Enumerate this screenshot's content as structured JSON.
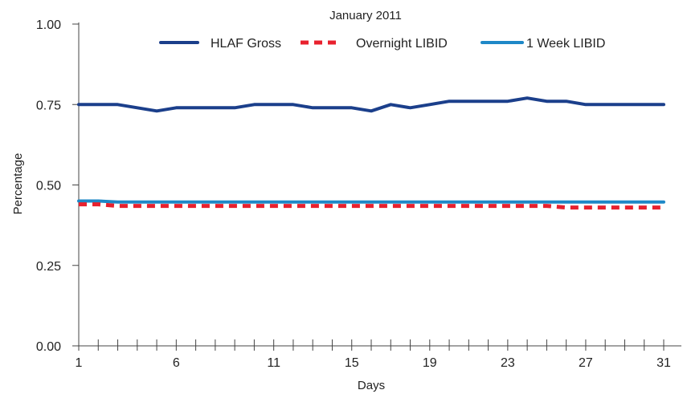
{
  "chart_data": {
    "type": "line",
    "title": "January 2011",
    "xlabel": "Days",
    "ylabel": "Percentage",
    "x": [
      1,
      2,
      3,
      4,
      5,
      6,
      7,
      8,
      9,
      10,
      11,
      12,
      13,
      14,
      15,
      16,
      17,
      18,
      19,
      20,
      21,
      22,
      23,
      24,
      25,
      26,
      27,
      28,
      29,
      30,
      31
    ],
    "x_tick_labels": [
      "1",
      "6",
      "11",
      "15",
      "19",
      "23",
      "27",
      "31"
    ],
    "x_tick_positions": [
      1,
      6,
      11,
      15,
      19,
      23,
      27,
      31
    ],
    "ylim": [
      0,
      1.0
    ],
    "y_tick_labels": [
      "0.00",
      "0.25",
      "0.50",
      "0.75",
      "1.00"
    ],
    "y_ticks": [
      0,
      0.25,
      0.5,
      0.75,
      1.0
    ],
    "legend_position": "top",
    "series": [
      {
        "name": "HLAF Gross",
        "color": "#1b3f8b",
        "style": "solid",
        "values": [
          0.75,
          0.75,
          0.75,
          0.74,
          0.73,
          0.74,
          0.74,
          0.74,
          0.74,
          0.75,
          0.75,
          0.75,
          0.74,
          0.74,
          0.74,
          0.73,
          0.75,
          0.74,
          0.75,
          0.76,
          0.76,
          0.76,
          0.76,
          0.77,
          0.76,
          0.76,
          0.75,
          0.75,
          0.75,
          0.75,
          0.75
        ]
      },
      {
        "name": "Overnight LIBID",
        "color": "#e8212e",
        "style": "dashed",
        "values": [
          0.44,
          0.44,
          0.435,
          0.435,
          0.435,
          0.435,
          0.435,
          0.435,
          0.435,
          0.435,
          0.435,
          0.435,
          0.435,
          0.435,
          0.435,
          0.435,
          0.435,
          0.435,
          0.435,
          0.435,
          0.435,
          0.435,
          0.435,
          0.435,
          0.435,
          0.43,
          0.43,
          0.43,
          0.43,
          0.43,
          0.43
        ]
      },
      {
        "name": "1 Week LIBID",
        "color": "#1e88c7",
        "style": "solid",
        "values": [
          0.45,
          0.45,
          0.447,
          0.447,
          0.447,
          0.447,
          0.447,
          0.447,
          0.447,
          0.447,
          0.447,
          0.447,
          0.447,
          0.447,
          0.447,
          0.447,
          0.447,
          0.447,
          0.447,
          0.447,
          0.447,
          0.447,
          0.447,
          0.447,
          0.447,
          0.447,
          0.447,
          0.447,
          0.447,
          0.447,
          0.447
        ]
      }
    ]
  }
}
